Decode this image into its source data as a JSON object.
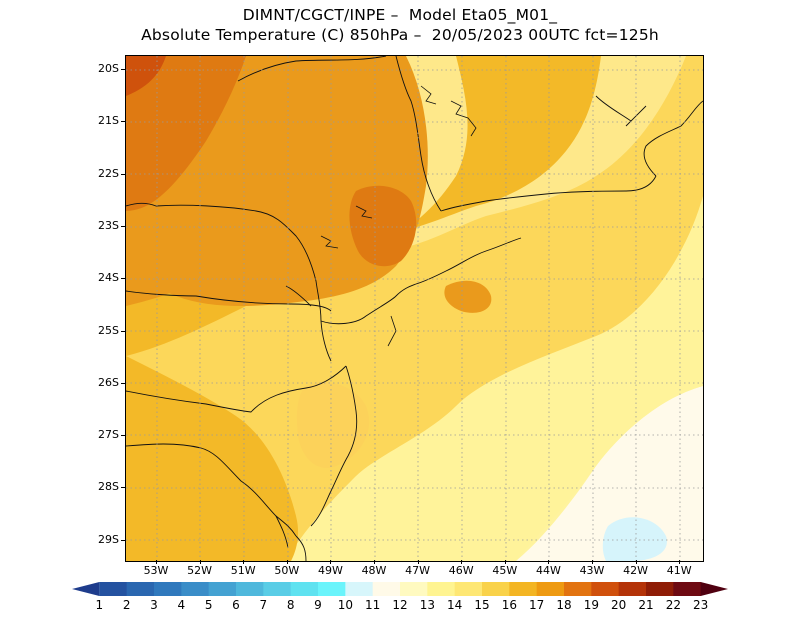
{
  "header": {
    "line1": "DIMNT/CGCT/INPE –  Model Eta05_M01_",
    "line2": "Absolute Temperature (C) 850hPa –  20/05/2023 00UTC fct=125h"
  },
  "axes": {
    "lat_labels": [
      "20S",
      "21S",
      "22S",
      "23S",
      "24S",
      "25S",
      "26S",
      "27S",
      "28S",
      "29S"
    ],
    "lon_labels": [
      "53W",
      "52W",
      "51W",
      "50W",
      "49W",
      "48W",
      "47W",
      "46W",
      "45W",
      "44W",
      "43W",
      "42W",
      "41W"
    ]
  },
  "map": {
    "region": "Southern and southeastern Brazil coast",
    "shaded_field": "850 hPa temperature"
  },
  "colorbar": {
    "labels": [
      "1",
      "2",
      "3",
      "4",
      "5",
      "6",
      "7",
      "8",
      "9",
      "10",
      "11",
      "12",
      "13",
      "14",
      "15",
      "16",
      "17",
      "18",
      "19",
      "20",
      "21",
      "22",
      "23"
    ],
    "colors": [
      "#1e3c8c",
      "#2452a0",
      "#2a67b0",
      "#3079bd",
      "#3a8dc8",
      "#44a2d2",
      "#4fb8dc",
      "#5acde6",
      "#5fe2f0",
      "#6af4fb",
      "#d7f6fb",
      "#fffae8",
      "#fffac0",
      "#fff491",
      "#fee774",
      "#f9d24a",
      "#f3b523",
      "#ee9a12",
      "#e27310",
      "#d0500c",
      "#b43308",
      "#8f1d06",
      "#6e0a12",
      "#500010"
    ]
  }
}
